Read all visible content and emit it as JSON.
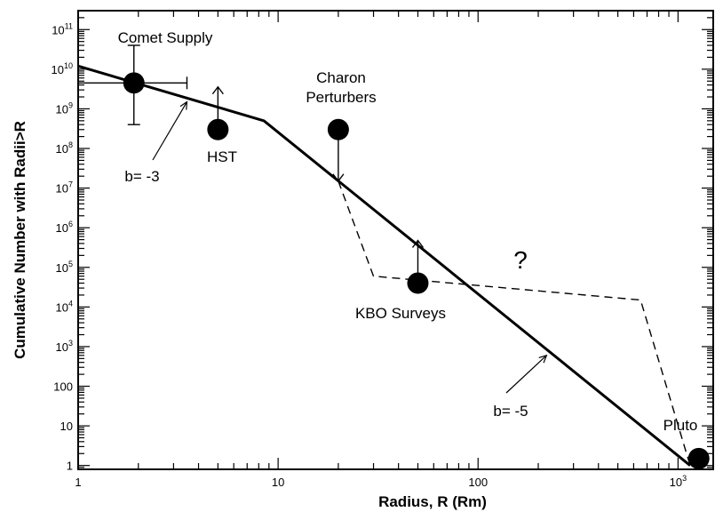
{
  "chart_data": {
    "type": "scatter",
    "xscale": "log",
    "yscale": "log",
    "xlabel": "Radius, R (Rm)",
    "ylabel": "Cumulative Number with Radii>R",
    "xlim": [
      1,
      1500
    ],
    "ylim": [
      0.8,
      300000000000
    ],
    "grid": false,
    "x_ticks": [
      {
        "value": 1,
        "label": "1"
      },
      {
        "value": 10,
        "label": "10"
      },
      {
        "value": 100,
        "label": "100"
      },
      {
        "value": 1000,
        "label": "10",
        "sup": "3"
      }
    ],
    "y_ticks": [
      {
        "value": 1,
        "label": "1"
      },
      {
        "value": 10,
        "label": "10"
      },
      {
        "value": 100,
        "label": "100"
      },
      {
        "value": 1000,
        "label": "10",
        "sup": "3"
      },
      {
        "value": 10000,
        "label": "10",
        "sup": "4"
      },
      {
        "value": 100000,
        "label": "10",
        "sup": "5"
      },
      {
        "value": 1000000,
        "label": "10",
        "sup": "6"
      },
      {
        "value": 10000000,
        "label": "10",
        "sup": "7"
      },
      {
        "value": 100000000,
        "label": "10",
        "sup": "8"
      },
      {
        "value": 1000000000,
        "label": "10",
        "sup": "9"
      },
      {
        "value": 10000000000,
        "label": "10",
        "sup": "10"
      },
      {
        "value": 100000000000,
        "label": "10",
        "sup": "11"
      }
    ],
    "series": [
      {
        "style": "solid",
        "points": [
          [
            1,
            12000000000
          ],
          [
            8.5,
            500000000
          ],
          [
            1150,
            1
          ]
        ]
      },
      {
        "style": "dashed",
        "points": [
          [
            20,
            15000000
          ],
          [
            30,
            60000
          ],
          [
            650,
            15000
          ],
          [
            1150,
            1
          ]
        ]
      }
    ],
    "points": [
      {
        "x": 1.9,
        "y": 4500000000,
        "label": "Comet Supply",
        "xerr": [
          1.0,
          3.5
        ],
        "yerr": [
          400000000,
          40000000000
        ]
      },
      {
        "x": 5,
        "y": 300000000,
        "label": "HST",
        "arrow": "up"
      },
      {
        "x": 20,
        "y": 300000000,
        "label": "Charon Perturbers",
        "arrow": "down"
      },
      {
        "x": 50,
        "y": 40000,
        "label": "KBO Surveys",
        "arrow": "up"
      },
      {
        "x": 1270,
        "y": 1.5,
        "label": "Pluto"
      }
    ],
    "annotations": [
      {
        "text": "b= -3",
        "points_to": [
          3.5,
          1500000000
        ]
      },
      {
        "text": "b= -5",
        "points_to": [
          220,
          600
        ]
      },
      {
        "text": "?",
        "at": [
          150,
          90000
        ]
      }
    ]
  }
}
